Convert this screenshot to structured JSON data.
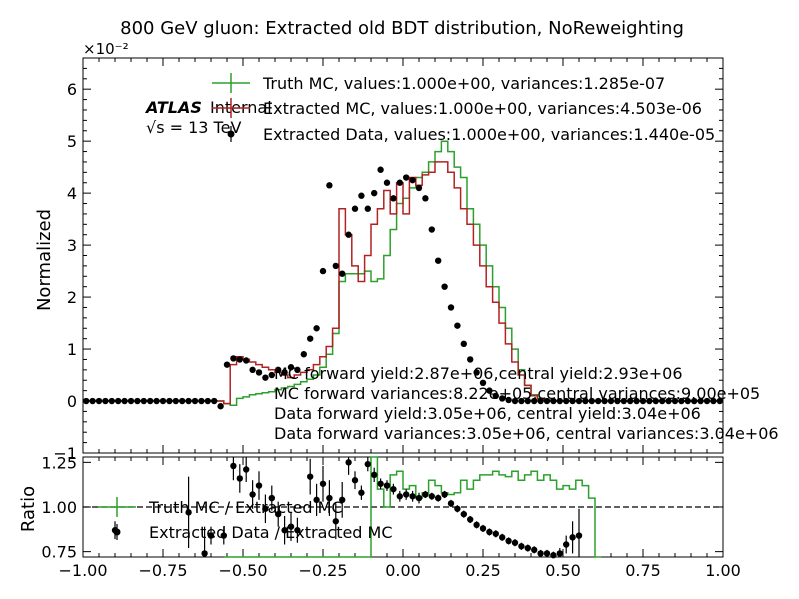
{
  "title": "800 GeV gluon: Extracted old BDT distribution, NoReweighting",
  "colors": {
    "truth_mc": "#2ca02c",
    "extracted_mc": "#b22222",
    "data": "#000000",
    "axes": "#000000"
  },
  "chart_data": [
    {
      "type": "line",
      "panel": "main",
      "ylabel": "Normalized",
      "scale_label": "×10⁻²",
      "ylim": [
        -1,
        6.6
      ],
      "xlim": [
        -1,
        1
      ],
      "yticks": [
        "−1",
        "0",
        "1",
        "2",
        "3",
        "4",
        "5",
        "6"
      ],
      "experiment_label": "ATLAS",
      "status_label": "Internal",
      "energy_label": "√s = 13 TeV",
      "legend_position": "top-center",
      "legend": [
        "Truth MC, values:1.000e+00, variances:1.285e-07",
        "Extracted MC, values:1.000e+00, variances:4.503e-06",
        "Extracted Data, values:1.000e+00, variances:1.440e-05"
      ],
      "annotations": [
        "MC forward yield:2.87e+06,central yield:2.93e+06",
        "MC forward variances:8.22e+05,central variances:9.00e+05",
        "Data forward yield:3.05e+06, central yield:3.04e+06",
        "Data forward variances:3.05e+06, central variances:3.04e+06"
      ],
      "bin_width": 0.02,
      "x_centers_start": -0.99,
      "series": [
        {
          "name": "Truth MC",
          "style": "step",
          "values": [
            0,
            0,
            0,
            0,
            0,
            0,
            0,
            0,
            0,
            0,
            0,
            0,
            0,
            0,
            0,
            0,
            0,
            0,
            0,
            0,
            0,
            0,
            -0.05,
            -0.08,
            0.05,
            0.08,
            0.12,
            0.14,
            0.16,
            0.18,
            0.22,
            0.25,
            0.28,
            0.32,
            0.37,
            0.42,
            0.5,
            0.65,
            0.9,
            1.3,
            2.3,
            2.45,
            2.45,
            2.45,
            2.5,
            2.3,
            2.35,
            2.8,
            3.3,
            3.8,
            3.9,
            4.1,
            4.3,
            4.4,
            4.6,
            4.8,
            5.0,
            4.8,
            4.5,
            4.3,
            3.7,
            3.4,
            3.0,
            2.6,
            2.2,
            1.8,
            1.4,
            1.0,
            0.6,
            0.3,
            0.12,
            0.05,
            0.02,
            0.01,
            0,
            0,
            0,
            0,
            0,
            0,
            0,
            0,
            0,
            0,
            0,
            0,
            0,
            0,
            0,
            0,
            0,
            0,
            0,
            0,
            0,
            0,
            0,
            0,
            0,
            0
          ]
        },
        {
          "name": "Extracted MC",
          "style": "step",
          "values": [
            0,
            0,
            0,
            0,
            0,
            0,
            0,
            0,
            0,
            0,
            0,
            0,
            0,
            0,
            0,
            0,
            0,
            0,
            0,
            0,
            0,
            0,
            -0.05,
            0.7,
            0.85,
            0.8,
            0.75,
            0.7,
            0.65,
            0.6,
            0.55,
            0.5,
            0.45,
            0.5,
            0.55,
            0.6,
            0.7,
            0.85,
            1.05,
            1.4,
            3.7,
            3.2,
            2.6,
            2.3,
            2.8,
            3.4,
            3.7,
            4.05,
            3.6,
            4.2,
            3.6,
            4.3,
            4.15,
            4.35,
            4.4,
            4.6,
            4.6,
            4.4,
            4.1,
            3.7,
            3.4,
            3.0,
            2.6,
            2.2,
            1.9,
            1.5,
            1.1,
            0.75,
            0.5,
            0.3,
            0.1,
            0.04,
            0.01,
            0,
            0,
            0,
            0,
            0,
            0,
            0,
            0,
            0,
            0,
            0,
            0,
            0,
            0,
            0,
            0,
            0,
            0,
            0,
            0,
            0,
            0,
            0,
            0,
            0,
            0,
            0
          ]
        },
        {
          "name": "Extracted Data",
          "style": "points",
          "values": [
            0,
            0,
            0,
            0,
            0,
            0,
            0,
            0,
            0,
            0,
            0,
            0,
            0,
            0,
            0,
            0,
            0,
            0,
            0,
            0,
            0,
            -0.1,
            0.7,
            0.82,
            0.8,
            0.78,
            0.6,
            0.55,
            0.45,
            0.5,
            0.6,
            0.55,
            0.65,
            0.6,
            0.9,
            1.2,
            1.4,
            2.5,
            4.15,
            2.6,
            2.45,
            3.2,
            3.7,
            3.95,
            3.7,
            4.0,
            4.45,
            4.2,
            3.9,
            4.2,
            4.3,
            4.25,
            4.1,
            3.9,
            3.3,
            2.7,
            2.2,
            1.8,
            1.45,
            1.1,
            0.8,
            0.55,
            0.35,
            0.2,
            0.1,
            0.05,
            0.02,
            0,
            0,
            0,
            0,
            0,
            0,
            0,
            0,
            0,
            0,
            0,
            0,
            0,
            0,
            0,
            0,
            0,
            0,
            0,
            0,
            0,
            0,
            0,
            0,
            0,
            0,
            0,
            0,
            0,
            0,
            0,
            0,
            0
          ]
        }
      ]
    },
    {
      "type": "line",
      "panel": "ratio",
      "ylabel": "Ratio",
      "xlabel": "",
      "ylim": [
        0.72,
        1.28
      ],
      "xlim": [
        -1,
        1
      ],
      "yticks": [
        "0.75",
        "1.00",
        "1.25"
      ],
      "xticks": [
        "−1.00",
        "−0.75",
        "−0.50",
        "−0.25",
        "0.00",
        "0.25",
        "0.50",
        "0.75",
        "1.00"
      ],
      "reference_line": 1.0,
      "legend_position": "left",
      "legend": [
        "Truth MC / Extracted MC",
        "Extracted Data / Extracted MC"
      ],
      "series": [
        {
          "name": "Truth MC / Extracted MC",
          "style": "step",
          "x_edges_start": -0.56,
          "bin_width": 0.02,
          "values": [
            0.72,
            0.72,
            0.72,
            0.72,
            0.72,
            0.72,
            0.72,
            0.72,
            0.72,
            0.72,
            0.72,
            0.72,
            0.72,
            0.72,
            0.72,
            0.72,
            0.72,
            0.72,
            0.72,
            0.72,
            0.72,
            0.72,
            0.72,
            1.28,
            1.1,
            1.0,
            1.18,
            1.2,
            1.1,
            1.12,
            1.05,
            1.08,
            1.15,
            1.12,
            1.08,
            1.07,
            1.08,
            1.15,
            1.1,
            1.15,
            1.18,
            1.18,
            1.2,
            1.18,
            1.17,
            1.2,
            1.15,
            1.18,
            1.2,
            1.15,
            1.18,
            1.15,
            1.1,
            1.12,
            1.1,
            1.15,
            1.12,
            1.05,
            0.72
          ]
        },
        {
          "name": "Extracted Data / Extracted MC",
          "style": "points",
          "x": [
            -0.9,
            -0.67,
            -0.62,
            -0.6,
            -0.56,
            -0.53,
            -0.51,
            -0.49,
            -0.47,
            -0.45,
            -0.43,
            -0.41,
            -0.39,
            -0.37,
            -0.35,
            -0.33,
            -0.29,
            -0.27,
            -0.25,
            -0.23,
            -0.21,
            -0.19,
            -0.17,
            -0.15,
            -0.13,
            -0.11,
            -0.09,
            -0.07,
            -0.05,
            -0.03,
            -0.01,
            0.01,
            0.03,
            0.05,
            0.07,
            0.09,
            0.11,
            0.13,
            0.15,
            0.17,
            0.19,
            0.21,
            0.23,
            0.25,
            0.27,
            0.29,
            0.31,
            0.33,
            0.35,
            0.37,
            0.39,
            0.41,
            0.43,
            0.45,
            0.47,
            0.49,
            0.51,
            0.53,
            0.55
          ],
          "values": [
            0.87,
            0.97,
            0.74,
            0.84,
            0.84,
            1.23,
            1.16,
            1.21,
            1.07,
            1.12,
            0.99,
            1.05,
            0.96,
            0.87,
            0.89,
            0.87,
            1.17,
            1.04,
            1.13,
            1.05,
            0.92,
            1.04,
            1.25,
            1.15,
            1.08,
            1.24,
            1.18,
            1.13,
            1.12,
            1.1,
            1.06,
            1.07,
            1.06,
            1.05,
            1.07,
            1.06,
            1.05,
            1.07,
            1.02,
            0.99,
            0.96,
            0.93,
            0.9,
            0.88,
            0.86,
            0.85,
            0.83,
            0.81,
            0.8,
            0.78,
            0.77,
            0.76,
            0.74,
            0.74,
            0.73,
            0.74,
            0.79,
            0.83,
            0.84
          ],
          "errors": [
            0.05,
            0.2,
            0.15,
            0.05,
            0.05,
            0.08,
            0.08,
            0.07,
            0.08,
            0.08,
            0.08,
            0.07,
            0.07,
            0.08,
            0.08,
            0.07,
            0.1,
            0.09,
            0.1,
            0.1,
            0.1,
            0.1,
            0.07,
            0.05,
            0.04,
            0.04,
            0.04,
            0.03,
            0.03,
            0.03,
            0.03,
            0.03,
            0.03,
            0.03,
            0.02,
            0.02,
            0.02,
            0.02,
            0.02,
            0.02,
            0.02,
            0.02,
            0.02,
            0.02,
            0.02,
            0.02,
            0.02,
            0.02,
            0.02,
            0.02,
            0.02,
            0.02,
            0.02,
            0.02,
            0.02,
            0.03,
            0.05,
            0.09,
            0.15
          ]
        }
      ]
    }
  ]
}
